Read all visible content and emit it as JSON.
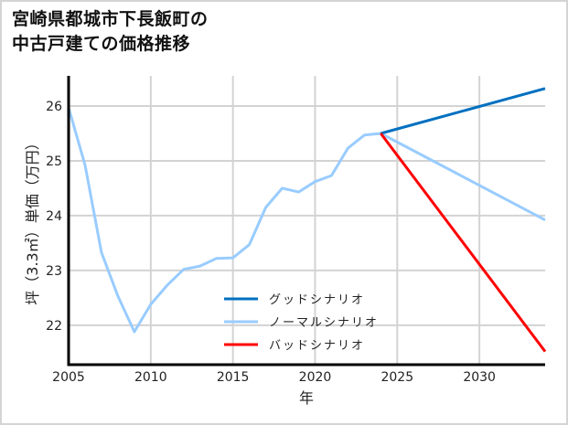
{
  "title_line1": "宮崎県都城市下長飯町の",
  "title_line2": "中古戸建ての価格推移",
  "chart_data": {
    "type": "line",
    "title": "宮崎県都城市下長飯町の中古戸建ての価格推移",
    "xlabel": "年",
    "ylabel": "坪（3.3㎡）単価（万円）",
    "xlim": [
      2005,
      2034
    ],
    "ylim": [
      21.28,
      26.55
    ],
    "xticks": [
      2005,
      2010,
      2015,
      2020,
      2025,
      2030
    ],
    "yticks": [
      22,
      23,
      24,
      25,
      26
    ],
    "grid": true,
    "legend_position": "lower center",
    "series": [
      {
        "name": "グッドシナリオ",
        "color": "#0070c0",
        "x": [
          2024,
          2034
        ],
        "values": [
          25.5,
          26.32
        ]
      },
      {
        "name": "ノーマルシナリオ",
        "color": "#99ccff",
        "x": [
          2005,
          2006,
          2007,
          2008,
          2009,
          2010,
          2011,
          2012,
          2013,
          2014,
          2015,
          2016,
          2017,
          2018,
          2019,
          2020,
          2021,
          2022,
          2023,
          2024,
          2034
        ],
        "values": [
          25.97,
          24.92,
          23.33,
          22.53,
          21.88,
          22.38,
          22.73,
          23.02,
          23.08,
          23.22,
          23.23,
          23.47,
          24.15,
          24.5,
          24.43,
          24.62,
          24.73,
          25.23,
          25.47,
          25.5,
          23.92
        ]
      },
      {
        "name": "バッドシナリオ",
        "color": "#ff0000",
        "x": [
          2024,
          2034
        ],
        "values": [
          25.5,
          21.52
        ]
      }
    ]
  }
}
